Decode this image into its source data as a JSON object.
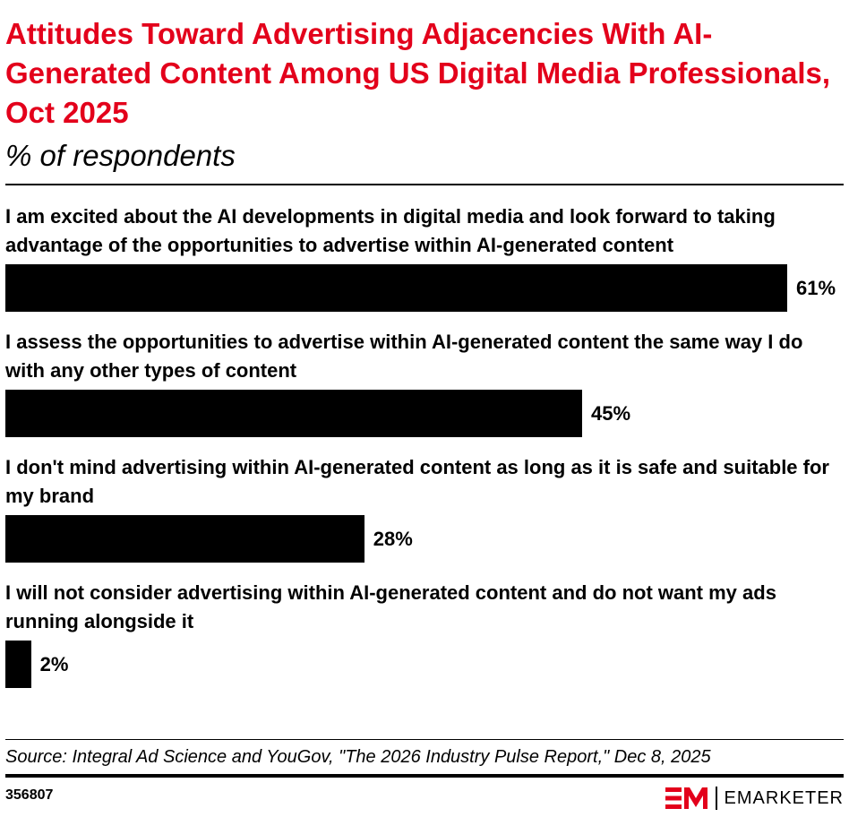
{
  "chart_data": {
    "type": "bar",
    "title": "Attitudes Toward Advertising Adjacencies With AI-Generated Content Among US Digital Media Professionals, Oct 2025",
    "subtitle": "% of respondents",
    "categories": [
      "I am excited about the AI developments in digital media and look forward to taking advantage of the opportunities to advertise within AI-generated content",
      "I assess the opportunities to advertise within AI-generated content the same way I do with any other types of content",
      "I don't mind advertising within AI-generated content as long as it is safe and suitable for my brand",
      "I will not consider advertising within AI-generated content and do not want my ads running alongside it"
    ],
    "values": [
      61,
      45,
      28,
      2
    ],
    "value_labels": [
      "61%",
      "45%",
      "28%",
      "2%"
    ],
    "color": "#000000",
    "source": "Source: Integral Ad Science and YouGov, \"The 2026 Industry Pulse Report,\" Dec 8, 2025",
    "chart_id": "356807",
    "brand": "EMARKETER"
  }
}
